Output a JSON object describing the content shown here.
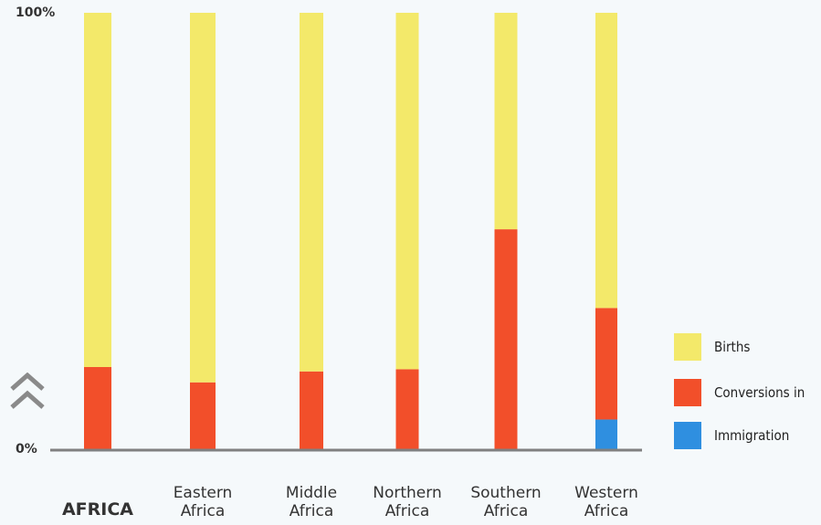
{
  "chart_data": {
    "type": "bar",
    "stacked": true,
    "percent": true,
    "categories": [
      "AFRICA",
      "Eastern Africa",
      "Middle Africa",
      "Northern Africa",
      "Southern Africa",
      "Western Africa"
    ],
    "series": [
      {
        "name": "Immigration",
        "color": "#2f8fe0",
        "values": [
          0,
          0,
          0,
          0,
          0,
          7
        ]
      },
      {
        "name": "Conversions in",
        "color": "#f24f2a",
        "values": [
          19,
          15.5,
          18,
          18.5,
          50.5,
          25.5
        ]
      },
      {
        "name": "Births",
        "color": "#f3e96a",
        "values": [
          81,
          84.5,
          82,
          81.5,
          49.5,
          67.5
        ]
      }
    ],
    "y_tick_labels": [
      "100%",
      "0%"
    ],
    "ylim": [
      0,
      100
    ],
    "legend_position": "right"
  },
  "legend": [
    {
      "label": "Births",
      "color": "#f3e96a"
    },
    {
      "label": "Conversions in",
      "color": "#f24f2a"
    },
    {
      "label": "Immigration",
      "color": "#2f8fe0"
    }
  ],
  "category_labels": [
    [
      "AFRICA"
    ],
    [
      "Eastern",
      "Africa"
    ],
    [
      "Middle",
      "Africa"
    ],
    [
      "Northern",
      "Africa"
    ],
    [
      "Southern",
      "Africa"
    ],
    [
      "Western",
      "Africa"
    ]
  ],
  "icons": {
    "scroll": "double-chevron-up-icon"
  }
}
